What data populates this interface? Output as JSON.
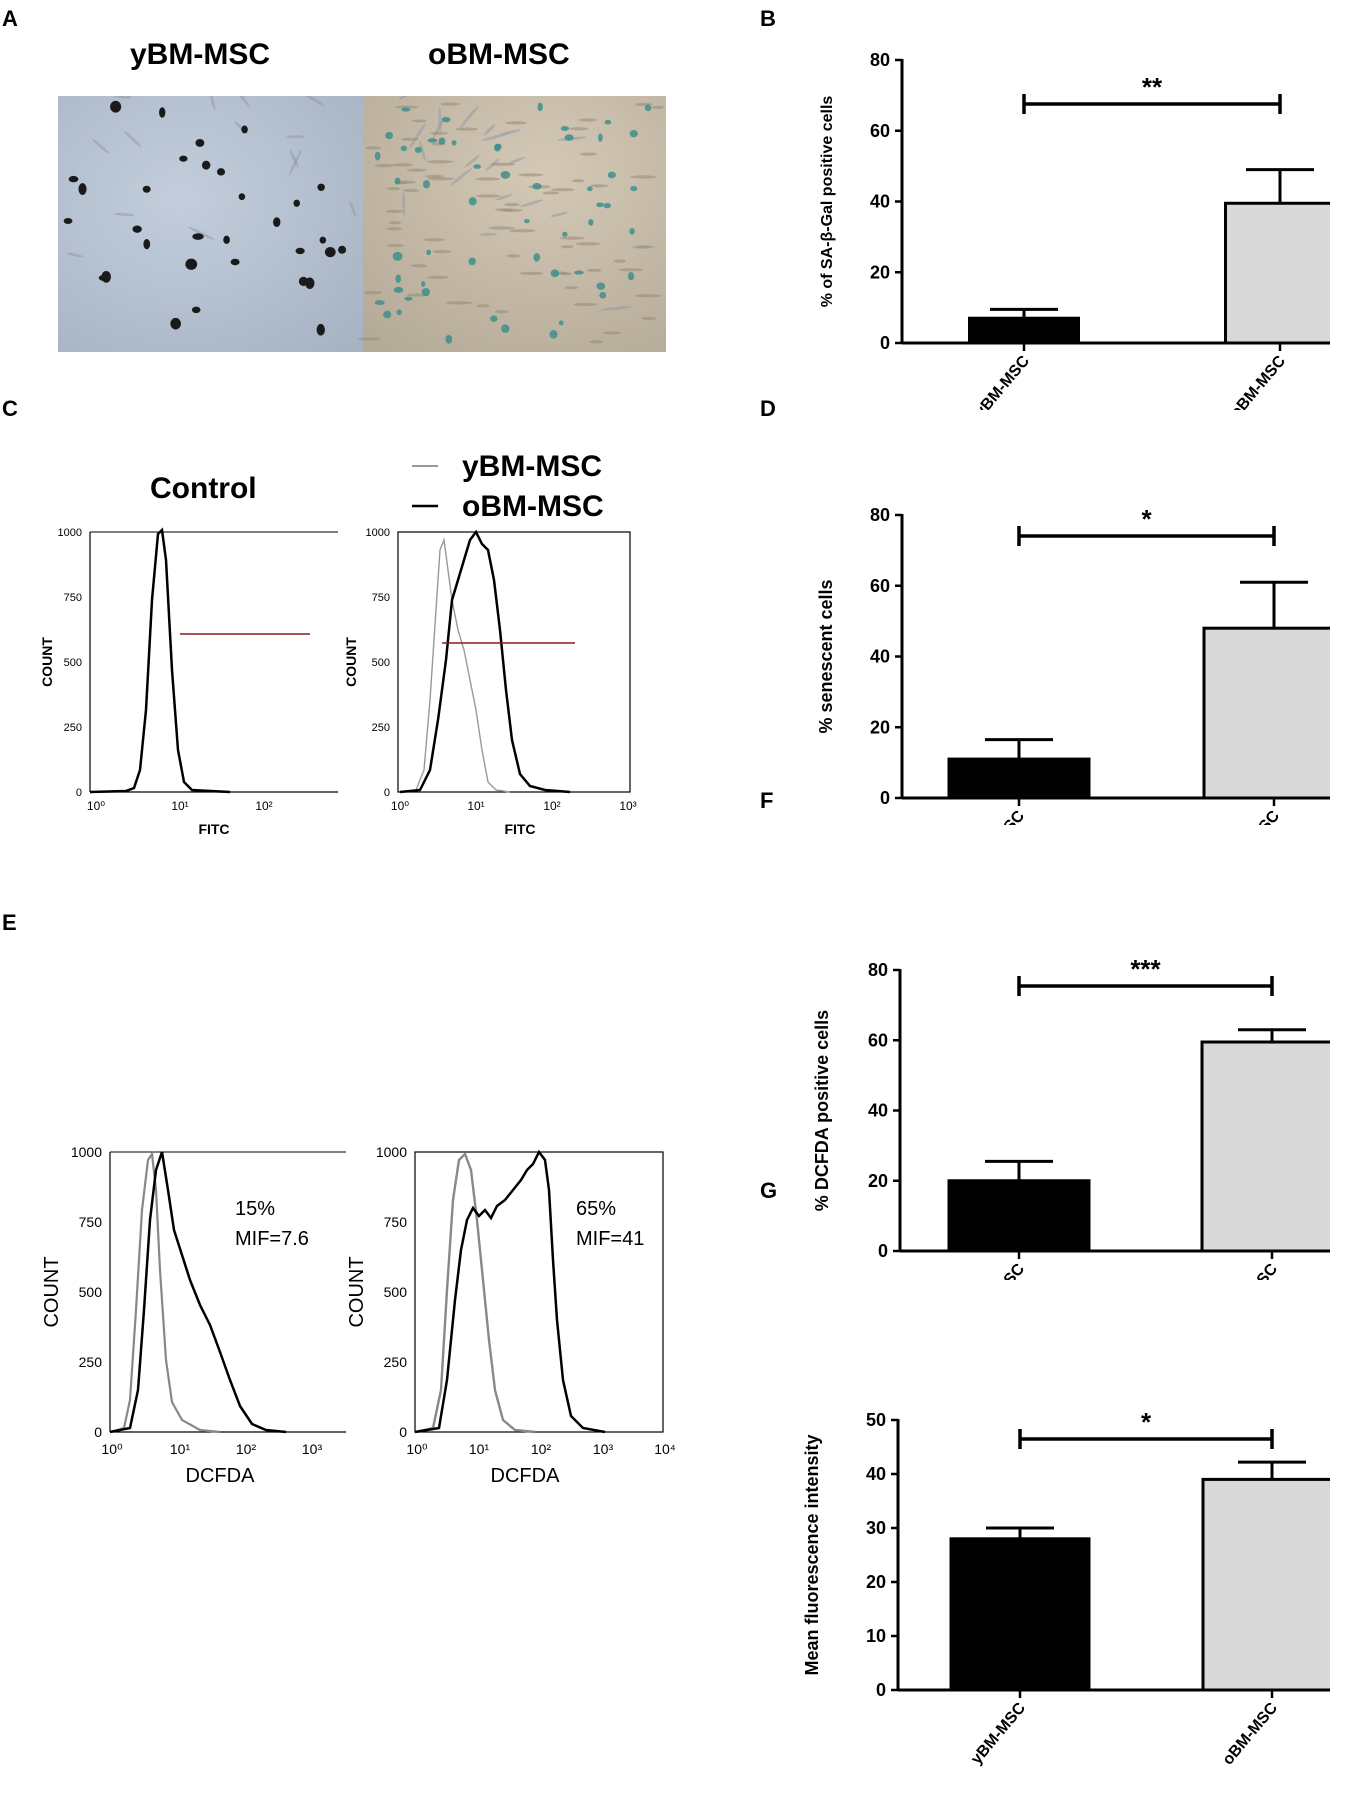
{
  "panels": {
    "A": "A",
    "B": "B",
    "C": "C",
    "D": "D",
    "E": "E",
    "F": "F",
    "G": "G"
  },
  "images": {
    "left_label": "yBM-MSC",
    "right_label": "oBM-MSC"
  },
  "colors": {
    "young": "#000000",
    "old": "#d9d9d9",
    "young_line": "#888888",
    "gate": "#8b1a1a"
  },
  "flow_c": {
    "control_title": "Control",
    "legend": [
      {
        "name": "yBM-MSC"
      },
      {
        "name": "oBM-MSC"
      }
    ],
    "xlabel": "FITC",
    "ylabel": "COUNT",
    "yticks": [
      "0",
      "250",
      "500",
      "750",
      "1000"
    ],
    "xticks_left": [
      "10⁰",
      "10¹",
      "10²"
    ],
    "xticks_right": [
      "10⁰",
      "10¹",
      "10²",
      "10³"
    ]
  },
  "flow_e": {
    "xlabel": "DCFDA",
    "ylabel": "COUNT",
    "yticks": [
      "0",
      "250",
      "500",
      "750",
      "1000"
    ],
    "xticks_left": [
      "10⁰",
      "10¹",
      "10²",
      "10³"
    ],
    "xticks_right": [
      "10⁰",
      "10¹",
      "10²",
      "10³",
      "10⁴"
    ],
    "left_pct": "15%",
    "left_mif": "MIF=7.6",
    "right_pct": "65%",
    "right_mif": "MIF=41"
  },
  "chart_data": [
    {
      "panel": "B",
      "type": "bar",
      "categories": [
        "yBM-MSC",
        "oBM-MSC"
      ],
      "values": [
        7,
        39.5
      ],
      "errors": [
        2.5,
        9.5
      ],
      "ylabel": "% of SA-β-Gal positive cells",
      "ylim": [
        0,
        80
      ],
      "yticks": [
        0,
        20,
        40,
        60,
        80
      ],
      "significance": "**"
    },
    {
      "panel": "D",
      "type": "bar",
      "categories": [
        "yBM-MSC",
        "oBM-MSC"
      ],
      "values": [
        11,
        48
      ],
      "errors": [
        5.5,
        13
      ],
      "ylabel": "% senescent cells",
      "ylim": [
        0,
        80
      ],
      "yticks": [
        0,
        20,
        40,
        60,
        80
      ],
      "significance": "*"
    },
    {
      "panel": "F",
      "type": "bar",
      "categories": [
        "yBM-MSC",
        "oBM-MSC"
      ],
      "values": [
        20,
        59.5
      ],
      "errors": [
        5.5,
        3.5
      ],
      "ylabel": "% DCFDA positive cells",
      "ylim": [
        0,
        80
      ],
      "yticks": [
        0,
        20,
        40,
        60,
        80
      ],
      "significance": "***"
    },
    {
      "panel": "G",
      "type": "bar",
      "categories": [
        "yBM-MSC",
        "oBM-MSC"
      ],
      "values": [
        28,
        39
      ],
      "errors": [
        2,
        3.2
      ],
      "ylabel": "Mean fluorescence intensity",
      "ylim": [
        0,
        50
      ],
      "yticks": [
        0,
        10,
        20,
        30,
        40,
        50
      ],
      "significance": "*"
    }
  ]
}
